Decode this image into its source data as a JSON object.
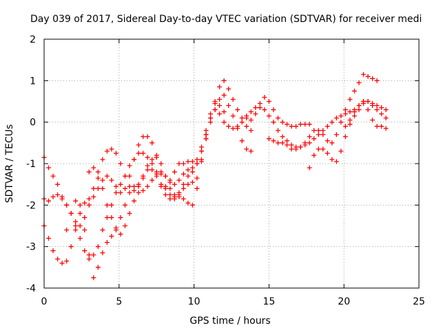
{
  "chart_data": {
    "type": "scatter",
    "title": "Day 039 of 2017, Sidereal Day-to-day VTEC variation (SDTVAR) for receiver medi",
    "xlabel": "GPS time / hours",
    "ylabel": "SDTVAR / TECUs",
    "xlim": [
      0,
      25
    ],
    "ylim": [
      -4,
      2
    ],
    "xticks": [
      "0",
      "5",
      "10",
      "15",
      "20",
      "25"
    ],
    "yticks": [
      "-4",
      "-3",
      "-2",
      "-1",
      "0",
      "1",
      "2"
    ],
    "grid": true,
    "legend": "none",
    "marker": "+",
    "color": "#ff0000",
    "series": [
      {
        "x": [
          0.0,
          0.3,
          0.6,
          0.9,
          1.2,
          1.5,
          1.8,
          2.1,
          2.4,
          2.7,
          3.0,
          3.3,
          3.6,
          3.9,
          4.2,
          4.5,
          4.8,
          5.1,
          5.4,
          5.7,
          6.0,
          6.3,
          6.6,
          6.9,
          7.2,
          7.5,
          7.8,
          8.1,
          8.4,
          8.7,
          9.0,
          9.3,
          9.6,
          9.9,
          10.2,
          10.5,
          10.8,
          11.1,
          11.4,
          11.7,
          12.0,
          12.3,
          12.6,
          12.9,
          13.2,
          13.5,
          13.8,
          14.1,
          14.4,
          14.7,
          15.0,
          15.3,
          15.6,
          15.9,
          16.2,
          16.5,
          16.8,
          17.1,
          17.4,
          17.7,
          18.0,
          18.3,
          18.6,
          18.9,
          19.2,
          19.5,
          19.8,
          20.1,
          20.4,
          20.7,
          21.0,
          21.3,
          21.6,
          21.9,
          22.2,
          22.5,
          22.8
        ],
        "y": [
          -0.85,
          -1.1,
          -1.3,
          -1.5,
          -1.8,
          -2.0,
          -2.2,
          -2.5,
          -2.8,
          -3.1,
          -3.3,
          -3.2,
          -3.0,
          -2.6,
          -2.3,
          -2.0,
          -1.7,
          -1.5,
          -1.3,
          -1.05,
          -0.9,
          -0.75,
          -0.75,
          -0.85,
          -1.0,
          -1.2,
          -1.5,
          -1.6,
          -1.4,
          -1.2,
          -1.0,
          -1.0,
          -0.95,
          -0.95,
          -0.9,
          -0.6,
          -0.2,
          0.1,
          0.3,
          0.2,
          0.0,
          -0.1,
          -0.15,
          -0.1,
          0.0,
          0.1,
          0.25,
          0.35,
          0.35,
          0.3,
          0.15,
          0.0,
          -0.2,
          -0.35,
          -0.45,
          -0.55,
          -0.6,
          -0.6,
          -0.55,
          -0.5,
          -0.4,
          -0.3,
          -0.2,
          -0.1,
          0.0,
          0.1,
          0.15,
          0.2,
          0.25,
          0.3,
          0.4,
          0.5,
          0.5,
          0.4,
          0.3,
          0.2,
          0.1
        ]
      },
      {
        "x": [
          0.0,
          0.3,
          0.6,
          0.9,
          1.2,
          1.5,
          1.8,
          2.1,
          2.4,
          2.7,
          3.0,
          3.3,
          3.6,
          3.9,
          4.2,
          4.5,
          4.8,
          5.1,
          5.4,
          5.7,
          6.0,
          6.3,
          6.6,
          6.9,
          7.2,
          7.5,
          7.8,
          8.1,
          8.4,
          8.7,
          9.0,
          9.3,
          9.6,
          9.9,
          10.2,
          10.5,
          10.8,
          11.1,
          11.4,
          11.7,
          12.0,
          12.3,
          12.6,
          12.9,
          13.2,
          13.5,
          13.8
        ],
        "y": [
          -1.85,
          -1.9,
          -1.8,
          -1.75,
          -1.85,
          -2.0,
          -2.2,
          -2.4,
          -2.5,
          -2.3,
          -2.0,
          -1.6,
          -1.2,
          -0.9,
          -0.7,
          -0.65,
          -0.75,
          -1.0,
          -1.3,
          -1.55,
          -1.65,
          -1.55,
          -1.3,
          -1.05,
          -0.9,
          -0.85,
          -1.0,
          -1.3,
          -1.6,
          -1.75,
          -1.7,
          -1.5,
          -1.3,
          -1.2,
          -1.0,
          -0.7,
          -0.3,
          0.1,
          0.5,
          0.85,
          1.0,
          0.8,
          0.55,
          0.3,
          0.1,
          -0.1,
          -0.2
        ]
      },
      {
        "x": [
          0.0,
          0.3,
          0.6,
          0.9,
          1.2,
          1.5,
          1.8,
          2.1,
          2.4,
          2.7,
          3.0,
          3.3,
          3.6,
          3.9,
          4.2,
          4.5,
          4.8,
          5.1,
          5.4,
          5.7,
          6.0,
          6.3,
          6.6,
          6.9,
          7.2,
          7.5,
          7.8,
          8.1,
          8.4,
          8.7,
          9.0,
          9.3,
          9.6,
          9.9,
          10.2,
          10.5,
          10.8,
          11.1,
          11.4,
          11.7,
          12.0,
          12.3,
          12.6,
          12.9,
          13.2,
          13.5,
          13.8
        ],
        "y": [
          -2.5,
          -2.8,
          -3.1,
          -3.3,
          -3.4,
          -3.35,
          -3.0,
          -2.6,
          -2.2,
          -1.95,
          -1.85,
          -1.8,
          -1.6,
          -1.4,
          -1.3,
          -1.4,
          -1.55,
          -1.7,
          -1.6,
          -1.3,
          -0.9,
          -0.55,
          -0.35,
          -0.35,
          -0.5,
          -0.8,
          -1.2,
          -1.55,
          -1.75,
          -1.8,
          -1.75,
          -1.6,
          -1.5,
          -1.45,
          -1.35,
          -0.95,
          -0.4,
          0.0,
          0.3,
          0.55,
          0.65,
          0.4,
          0.15,
          -0.15,
          -0.45,
          -0.65,
          -0.7
        ]
      },
      {
        "x": [
          1.5,
          1.8,
          2.1,
          2.4,
          2.7,
          3.0,
          3.3,
          3.6,
          3.9,
          4.2,
          4.5,
          4.8,
          5.1,
          5.4,
          5.7,
          6.0,
          6.3,
          6.6,
          6.9,
          7.2,
          7.5,
          7.8,
          8.1,
          8.4,
          8.7,
          9.0,
          9.3,
          9.6,
          9.9,
          10.2,
          10.5,
          10.8,
          11.1,
          11.4,
          11.7,
          12.0
        ],
        "y": [
          -2.6,
          -2.2,
          -1.9,
          -2.0,
          -2.6,
          -3.2,
          -3.75,
          -3.5,
          -3.15,
          -2.9,
          -2.75,
          -2.6,
          -2.3,
          -2.0,
          -1.7,
          -1.55,
          -1.5,
          -1.35,
          -1.15,
          -1.15,
          -1.3,
          -1.55,
          -1.75,
          -1.85,
          -1.85,
          -1.8,
          -1.85,
          -1.95,
          -2.0,
          -1.6,
          -0.9,
          -0.3,
          0.2,
          0.45,
          0.4,
          0.25
        ]
      },
      {
        "x": [
          3.0,
          3.3,
          3.6,
          3.9,
          4.2,
          4.5,
          4.8,
          5.1,
          5.4,
          5.7,
          6.0,
          6.3,
          6.6,
          6.9,
          7.2,
          7.5,
          7.8,
          8.1,
          8.4,
          8.7,
          9.0,
          9.3,
          9.6,
          9.9,
          10.2,
          10.5,
          10.8
        ],
        "y": [
          -1.2,
          -1.1,
          -1.35,
          -1.6,
          -2.0,
          -2.3,
          -2.55,
          -2.7,
          -2.5,
          -2.2,
          -1.9,
          -1.7,
          -1.65,
          -1.55,
          -1.4,
          -1.25,
          -1.25,
          -1.3,
          -1.45,
          -1.5,
          -1.4,
          -1.25,
          -1.15,
          -1.1,
          -1.0,
          -0.7,
          -0.4
        ]
      },
      {
        "x": [
          13.5,
          13.8,
          14.1,
          14.4,
          14.7,
          15.0,
          15.3,
          15.6,
          15.9,
          16.2,
          16.5,
          16.8,
          17.1,
          17.4,
          17.7
        ],
        "y": [
          0.15,
          0.05,
          0.2,
          0.45,
          0.6,
          0.5,
          0.3,
          0.1,
          0.0,
          -0.05,
          -0.1,
          -0.1,
          -0.05,
          -0.05,
          -0.05
        ]
      },
      {
        "x": [
          15.0,
          15.3,
          15.6,
          15.9,
          16.2,
          16.5,
          16.8,
          17.1,
          17.4,
          17.7,
          18.0,
          18.3,
          18.6,
          18.9,
          19.2,
          19.5,
          19.8,
          20.1,
          20.4,
          20.7,
          21.0,
          21.3,
          21.6,
          21.9,
          22.2
        ],
        "y": [
          -0.4,
          -0.45,
          -0.5,
          -0.5,
          -0.55,
          -0.65,
          -0.65,
          -0.6,
          -0.5,
          -0.35,
          -0.2,
          -0.2,
          -0.3,
          -0.45,
          -0.5,
          -0.3,
          0.0,
          0.3,
          0.55,
          0.75,
          0.95,
          1.15,
          1.1,
          1.05,
          1.0
        ]
      },
      {
        "x": [
          17.7,
          18.0,
          18.3,
          18.6,
          18.9,
          19.2,
          19.5,
          19.8,
          20.1,
          20.4,
          20.7,
          21.0,
          21.3,
          21.6,
          21.9,
          22.2,
          22.5,
          22.8
        ],
        "y": [
          -1.1,
          -0.8,
          -0.65,
          -0.65,
          -0.75,
          -0.9,
          -0.95,
          -0.7,
          -0.35,
          -0.05,
          0.15,
          0.3,
          0.45,
          0.5,
          0.45,
          0.4,
          0.35,
          0.3
        ]
      },
      {
        "x": [
          20.1,
          20.4,
          20.7,
          21.0,
          21.3,
          21.6,
          21.9,
          22.2,
          22.5,
          22.8
        ],
        "y": [
          -0.1,
          0.05,
          0.25,
          0.4,
          0.5,
          0.3,
          0.05,
          -0.1,
          -0.1,
          -0.15
        ]
      }
    ]
  }
}
